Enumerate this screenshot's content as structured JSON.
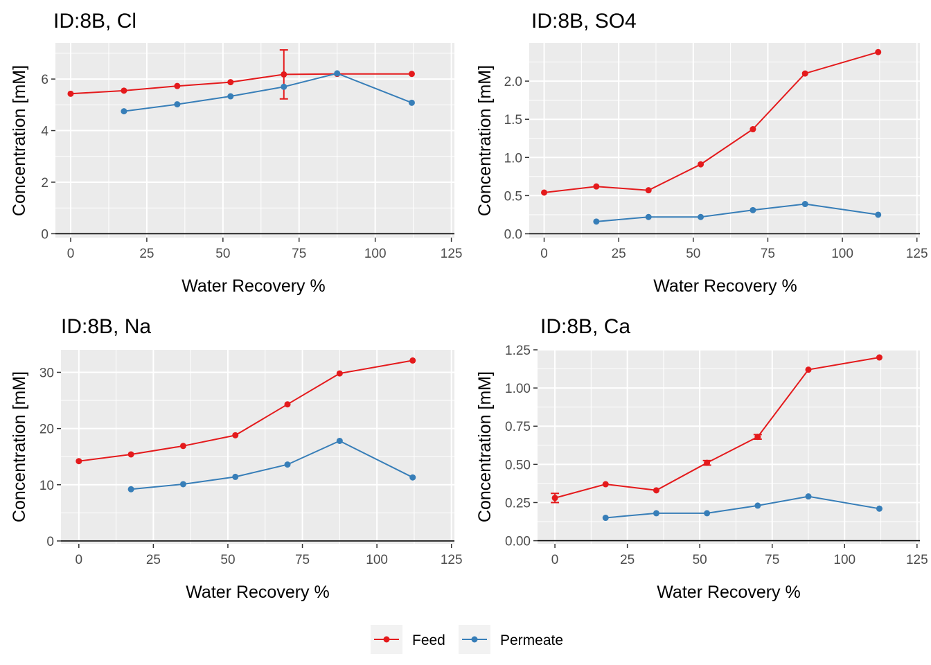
{
  "colors": {
    "feed": "#E41A1C",
    "permeate": "#377EB8",
    "panel_bg": "#EBEBEB",
    "grid": "#FFFFFF",
    "zero_line": "#000000"
  },
  "legend": {
    "position": "bottom",
    "items": [
      {
        "label": "Feed",
        "color": "#E41A1C"
      },
      {
        "label": "Permeate",
        "color": "#377EB8"
      }
    ]
  },
  "chart_data": [
    {
      "type": "line",
      "title": "ID:8B, Cl",
      "xlabel": "Water Recovery %",
      "ylabel": "Concentration [mM]",
      "xlim": [
        -5,
        126
      ],
      "ylim": [
        -0.15,
        7.4
      ],
      "xticks": [
        0,
        25,
        50,
        75,
        100,
        125
      ],
      "yticks": [
        0,
        2,
        4,
        6
      ],
      "series": [
        {
          "name": "Feed",
          "points": [
            {
              "x": 0,
              "y": 5.43
            },
            {
              "x": 17.5,
              "y": 5.55
            },
            {
              "x": 35,
              "y": 5.73
            },
            {
              "x": 52.5,
              "y": 5.88
            },
            {
              "x": 70,
              "y": 6.18,
              "err": 0.95
            },
            {
              "x": 87.5,
              "y": 6.2
            },
            {
              "x": 112,
              "y": 6.2
            }
          ]
        },
        {
          "name": "Permeate",
          "points": [
            {
              "x": 17.5,
              "y": 4.75
            },
            {
              "x": 35,
              "y": 5.02
            },
            {
              "x": 52.5,
              "y": 5.33
            },
            {
              "x": 70,
              "y": 5.7
            },
            {
              "x": 87.5,
              "y": 6.22
            },
            {
              "x": 112,
              "y": 5.08
            }
          ]
        }
      ]
    },
    {
      "type": "line",
      "title": "ID:8B, SO4",
      "xlabel": "Water Recovery %",
      "ylabel": "Concentration [mM]",
      "xlim": [
        -5,
        126
      ],
      "ylim": [
        -0.05,
        2.5
      ],
      "xticks": [
        0,
        25,
        50,
        75,
        100,
        125
      ],
      "yticks": [
        0.0,
        0.5,
        1.0,
        1.5,
        2.0
      ],
      "yticklabels": [
        "0.0",
        "0.5",
        "1.0",
        "1.5",
        "2.0"
      ],
      "series": [
        {
          "name": "Feed",
          "points": [
            {
              "x": 0,
              "y": 0.54
            },
            {
              "x": 17.5,
              "y": 0.62
            },
            {
              "x": 35,
              "y": 0.57
            },
            {
              "x": 52.5,
              "y": 0.91
            },
            {
              "x": 70,
              "y": 1.37
            },
            {
              "x": 87.5,
              "y": 2.1
            },
            {
              "x": 112,
              "y": 2.38
            }
          ]
        },
        {
          "name": "Permeate",
          "points": [
            {
              "x": 17.5,
              "y": 0.16
            },
            {
              "x": 35,
              "y": 0.22
            },
            {
              "x": 52.5,
              "y": 0.22
            },
            {
              "x": 70,
              "y": 0.31
            },
            {
              "x": 87.5,
              "y": 0.39
            },
            {
              "x": 112,
              "y": 0.25
            }
          ]
        }
      ]
    },
    {
      "type": "line",
      "title": "ID:8B, Na",
      "xlabel": "Water Recovery %",
      "ylabel": "Concentration [mM]",
      "xlim": [
        -6,
        126
      ],
      "ylim": [
        -0.5,
        34.0
      ],
      "xticks": [
        0,
        25,
        50,
        75,
        100,
        125
      ],
      "yticks": [
        0,
        10,
        20,
        30
      ],
      "series": [
        {
          "name": "Feed",
          "points": [
            {
              "x": 0,
              "y": 14.2
            },
            {
              "x": 17.5,
              "y": 15.4
            },
            {
              "x": 35,
              "y": 16.9
            },
            {
              "x": 52.5,
              "y": 18.8
            },
            {
              "x": 70,
              "y": 24.3
            },
            {
              "x": 87.5,
              "y": 29.8
            },
            {
              "x": 112,
              "y": 32.1
            }
          ]
        },
        {
          "name": "Permeate",
          "points": [
            {
              "x": 17.5,
              "y": 9.2
            },
            {
              "x": 35,
              "y": 10.1
            },
            {
              "x": 52.5,
              "y": 11.4
            },
            {
              "x": 70,
              "y": 13.6
            },
            {
              "x": 87.5,
              "y": 17.8
            },
            {
              "x": 112,
              "y": 11.3
            }
          ]
        }
      ]
    },
    {
      "type": "line",
      "title": "ID:8B, Ca",
      "xlabel": "Water Recovery %",
      "ylabel": "Concentration [mM]",
      "xlim": [
        -6,
        126
      ],
      "ylim": [
        -0.02,
        1.25
      ],
      "xticks": [
        0,
        25,
        50,
        75,
        100,
        125
      ],
      "yticks": [
        0.0,
        0.25,
        0.5,
        0.75,
        1.0,
        1.25
      ],
      "yticklabels": [
        "0.00",
        "0.25",
        "0.50",
        "0.75",
        "1.00",
        "1.25"
      ],
      "series": [
        {
          "name": "Feed",
          "points": [
            {
              "x": 0,
              "y": 0.28,
              "err": 0.03
            },
            {
              "x": 17.5,
              "y": 0.37
            },
            {
              "x": 35,
              "y": 0.33
            },
            {
              "x": 52.5,
              "y": 0.51,
              "err": 0.015
            },
            {
              "x": 70,
              "y": 0.68,
              "err": 0.015
            },
            {
              "x": 87.5,
              "y": 1.12
            },
            {
              "x": 112,
              "y": 1.2
            }
          ]
        },
        {
          "name": "Permeate",
          "points": [
            {
              "x": 17.5,
              "y": 0.15
            },
            {
              "x": 35,
              "y": 0.18
            },
            {
              "x": 52.5,
              "y": 0.18
            },
            {
              "x": 70,
              "y": 0.23
            },
            {
              "x": 87.5,
              "y": 0.29
            },
            {
              "x": 112,
              "y": 0.21
            }
          ]
        }
      ]
    }
  ]
}
